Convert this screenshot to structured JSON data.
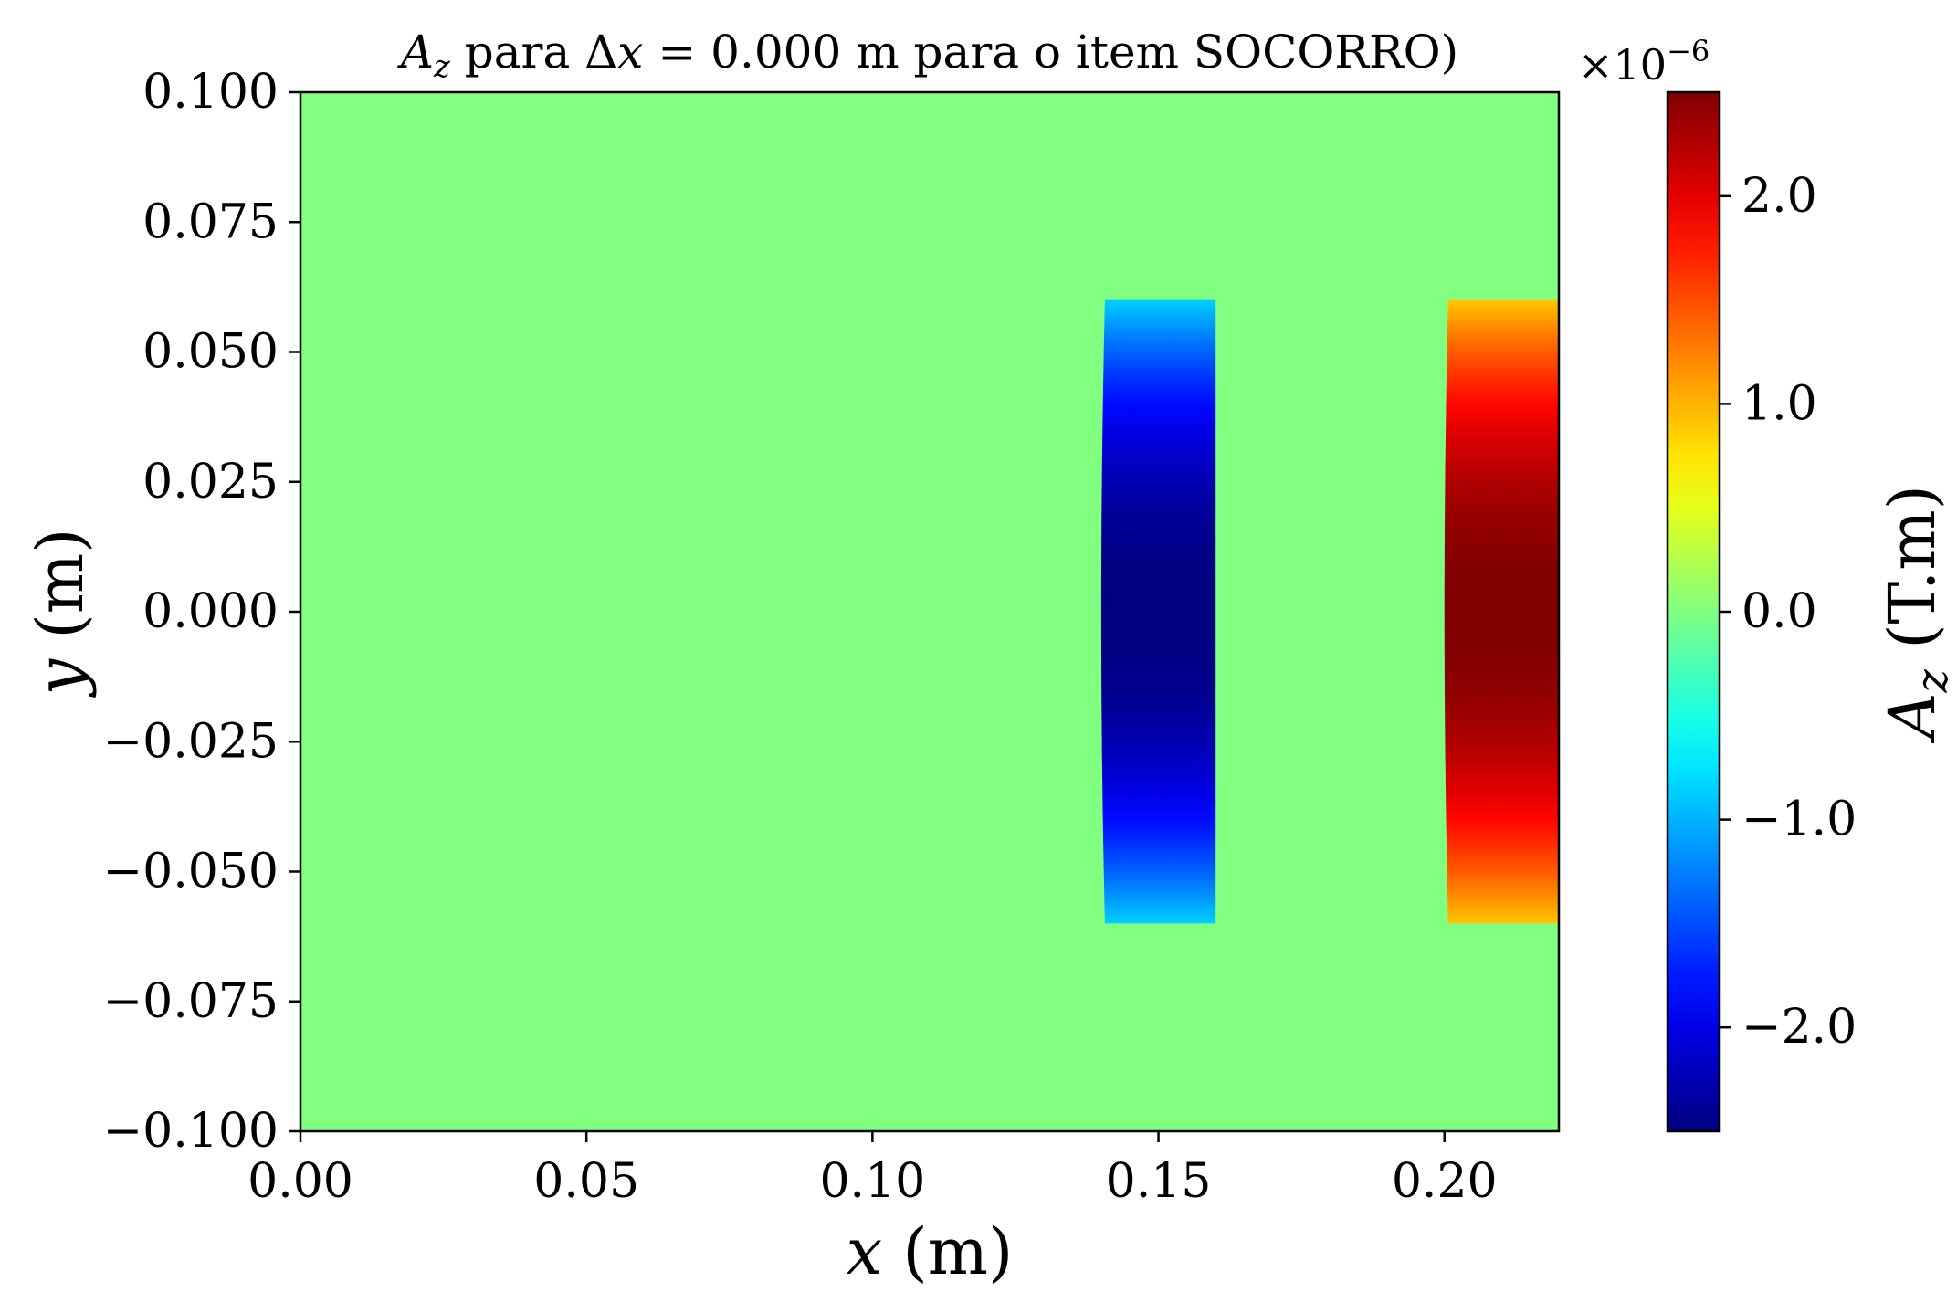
{
  "chart_data": {
    "type": "heatmap",
    "title": "A_z para Δx = 0.000 m para o item SOCORRO)",
    "title_parts": {
      "symbol": "A",
      "subscript": "z",
      "mid": " para ",
      "delta": "Δ",
      "var": "x",
      "rest": " = 0.000 m para o item SOCORRO)"
    },
    "xlabel": {
      "var": "x",
      "unit": " (m)"
    },
    "ylabel": {
      "var": "y",
      "unit": " (m)"
    },
    "xlim": [
      0.0,
      0.22
    ],
    "ylim": [
      -0.1,
      0.1
    ],
    "xticks": [
      0.0,
      0.05,
      0.1,
      0.15,
      0.2
    ],
    "xtick_labels": [
      "0.00",
      "0.05",
      "0.10",
      "0.15",
      "0.20"
    ],
    "yticks": [
      0.1,
      0.075,
      0.05,
      0.025,
      0.0,
      -0.025,
      -0.05,
      -0.075,
      -0.1
    ],
    "ytick_labels": [
      "0.100",
      "0.075",
      "0.050",
      "0.025",
      "0.000",
      "−0.025",
      "−0.050",
      "−0.075",
      "−0.100"
    ],
    "colormap": "jet",
    "background_value": 0.0,
    "regions": [
      {
        "x_range": [
          0.14,
          0.16
        ],
        "y_range": [
          -0.06,
          0.06
        ],
        "peak_value": -2.5e-06,
        "edge_value": -8.5e-07,
        "profile": "peak at y=0, decreasing in magnitude toward y edges"
      },
      {
        "x_range": [
          0.2,
          0.22
        ],
        "y_range": [
          -0.06,
          0.06
        ],
        "peak_value": 2.5e-06,
        "edge_value": 9e-07,
        "profile": "peak at y=0, decreasing in magnitude toward y edges"
      }
    ],
    "colorbar": {
      "label": {
        "symbol": "A",
        "subscript": "z",
        "unit": " (T.m)"
      },
      "range": [
        -2.5e-06,
        2.5e-06
      ],
      "ticks": [
        2.0,
        1.0,
        0.0,
        -1.0,
        -2.0
      ],
      "tick_labels": [
        "2.0",
        "1.0",
        "0.0",
        "−1.0",
        "−2.0"
      ],
      "offset_text": {
        "base": "×10",
        "exponent": "−6"
      }
    }
  }
}
